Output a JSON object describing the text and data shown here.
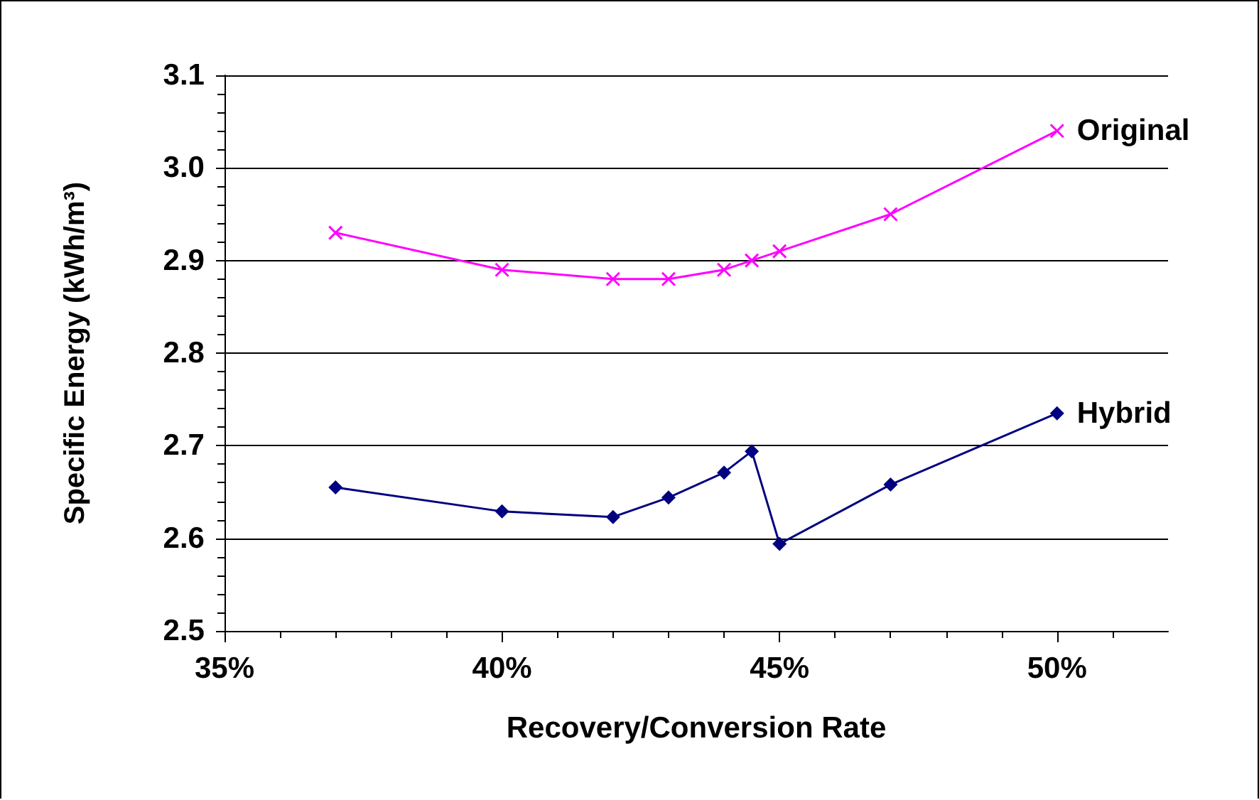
{
  "chart_data": {
    "type": "line",
    "xlabel": "Recovery/Conversion Rate",
    "ylabel": "Specific Energy (kWh/m³)",
    "x": [
      37,
      40,
      42,
      43,
      44,
      44.5,
      45,
      47,
      50
    ],
    "series": [
      {
        "name": "Original",
        "color": "#ff00ff",
        "marker": "cross",
        "values": [
          2.93,
          2.89,
          2.88,
          2.88,
          2.89,
          2.9,
          2.91,
          2.95,
          3.04
        ]
      },
      {
        "name": "Hybrid",
        "color": "#000080",
        "marker": "diamond",
        "values": [
          2.655,
          2.629,
          2.623,
          2.644,
          2.671,
          2.694,
          2.594,
          2.658,
          2.735
        ]
      }
    ],
    "xlim": [
      35,
      52
    ],
    "xticks": [
      {
        "value": 35,
        "label": "35%"
      },
      {
        "value": 40,
        "label": "40%"
      },
      {
        "value": 45,
        "label": "45%"
      },
      {
        "value": 50,
        "label": "50%"
      }
    ],
    "ylim": [
      2.5,
      3.1
    ],
    "yticks": [
      {
        "value": 2.5,
        "label": "2.5"
      },
      {
        "value": 2.6,
        "label": "2.6"
      },
      {
        "value": 2.7,
        "label": "2.7"
      },
      {
        "value": 2.8,
        "label": "2.8"
      },
      {
        "value": 2.9,
        "label": "2.9"
      },
      {
        "value": 3.0,
        "label": "3.0"
      },
      {
        "value": 3.1,
        "label": "3.1"
      }
    ],
    "grid": "y",
    "legend": false,
    "line_style": "solid"
  }
}
